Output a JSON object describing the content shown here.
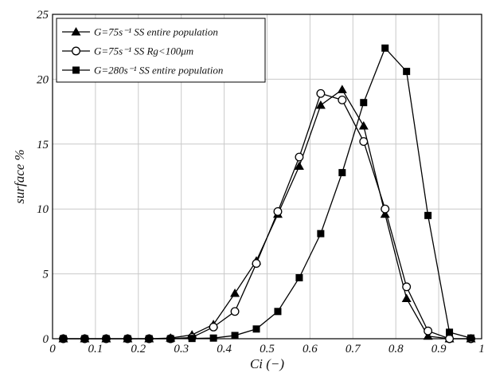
{
  "chart_data": {
    "type": "line",
    "xlabel": "Ci (−)",
    "ylabel": "surface %",
    "xlim": [
      0,
      1
    ],
    "ylim": [
      0,
      25
    ],
    "xticks": [
      "0",
      "0.1",
      "0.2",
      "0.3",
      "0.4",
      "0.5",
      "0.6",
      "0.7",
      "0.8",
      "0.9",
      "1"
    ],
    "yticks": [
      "0",
      "5",
      "10",
      "15",
      "20",
      "25"
    ],
    "grid": true,
    "legend_position": "top-left",
    "x": [
      0.025,
      0.075,
      0.125,
      0.175,
      0.225,
      0.275,
      0.325,
      0.375,
      0.425,
      0.475,
      0.525,
      0.575,
      0.625,
      0.675,
      0.725,
      0.775,
      0.825,
      0.875,
      0.925,
      0.975
    ],
    "series": [
      {
        "name": "G=75s⁻¹ SS entire population",
        "marker": "triangle",
        "values": [
          0,
          0,
          0,
          0,
          0,
          0.05,
          0.3,
          1.1,
          3.5,
          6.0,
          9.6,
          13.3,
          18.0,
          19.2,
          16.4,
          9.6,
          3.1,
          0.2,
          0,
          0
        ]
      },
      {
        "name": "G=75s⁻¹ SS Rg<100μm",
        "marker": "circle",
        "values": [
          0,
          0,
          0,
          0,
          0,
          0,
          0.1,
          0.9,
          2.1,
          5.8,
          9.8,
          14.0,
          18.9,
          18.4,
          15.2,
          10.0,
          4.0,
          0.6,
          0,
          0
        ]
      },
      {
        "name": "G=280s⁻¹ SS entire population",
        "marker": "square",
        "values": [
          0,
          0,
          0,
          0,
          0,
          0,
          0.02,
          0.05,
          0.25,
          0.75,
          2.1,
          4.7,
          8.1,
          12.8,
          18.2,
          22.4,
          20.6,
          9.5,
          0.5,
          0.05
        ]
      }
    ]
  }
}
